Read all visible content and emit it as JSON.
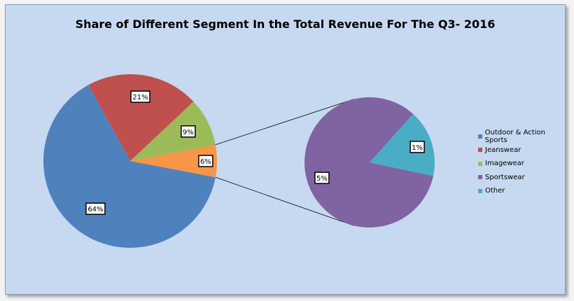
{
  "chart_data": {
    "type": "pie",
    "title": "Share of Different Segment In the Total Revenue For The Q3- 2016",
    "slices": [
      {
        "name": "Outdoor & Action Sports",
        "value": 64,
        "label": "64%",
        "color": "#4f81bd"
      },
      {
        "name": "Jeanswear",
        "value": 21,
        "label": "21%",
        "color": "#c0504d"
      },
      {
        "name": "Imagewear",
        "value": 9,
        "label": "9%",
        "color": "#9bbb59"
      },
      {
        "name": "Sportswear",
        "value": 5,
        "label": "5%",
        "color": "#8064a2"
      },
      {
        "name": "Other",
        "value": 1,
        "label": "1%",
        "color": "#4bacc6"
      }
    ],
    "breakout": {
      "label": "6%",
      "color": "#f79646",
      "components": [
        "Sportswear",
        "Other"
      ]
    },
    "legend_position": "right"
  }
}
